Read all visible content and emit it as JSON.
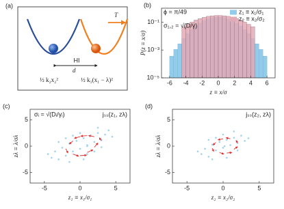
{
  "panel_a": {
    "panel_label": "(a)",
    "left_potential": "½ k₂x₂²",
    "right_potential": "½ k₁(x₁ − λ)²",
    "coupling": "HI",
    "distance": "d",
    "temperature": "T"
  },
  "chart_data": [
    {
      "type": "histogram",
      "panel_label": "(b)",
      "xlabel": "z ≡ x/σ",
      "ylabel": "P(z ≡ x/σ)",
      "annotations": [
        "ϕ = π/49",
        "σ₁,₂ = √(D/γ)"
      ],
      "xlim": [
        -7,
        7
      ],
      "xticks": [
        -6,
        -4,
        -2,
        0,
        2,
        4,
        6
      ],
      "ylim": [
        1e-05,
        1
      ],
      "log_y": true,
      "yticks": [
        {
          "value": 1e-05,
          "label": "10⁻⁵"
        },
        {
          "value": 0.001,
          "label": "10⁻³"
        },
        {
          "value": 0.1,
          "label": "10⁻¹"
        }
      ],
      "legend": "upper right",
      "series": [
        {
          "name": "z₁ ≡ x₁/σ₁",
          "color": "#93cbea",
          "bins": [
            -6,
            -5.5,
            -5,
            -4.5,
            -4,
            -3.5,
            -3,
            -2.5,
            -2,
            -1.5,
            -1,
            -0.5,
            0,
            0.5,
            1,
            1.5,
            2,
            2.5,
            3,
            3.5,
            4,
            4.5,
            5,
            5.5,
            6
          ],
          "values": [
            0.00036,
            0.0011,
            0.0028,
            0.0067,
            0.015,
            0.029,
            0.052,
            0.086,
            0.13,
            0.17,
            0.21,
            0.23,
            0.23,
            0.21,
            0.17,
            0.13,
            0.086,
            0.052,
            0.029,
            0.015,
            0.0067,
            0.0028,
            0.0011,
            0.00036
          ]
        },
        {
          "name": "z₂ ≡ x₂/σ₂",
          "color": "#e2a9b6",
          "bins": [
            -4.5,
            -4,
            -3.5,
            -3,
            -2.5,
            -2,
            -1.5,
            -1,
            -0.5,
            0,
            0.5,
            1,
            1.5,
            2,
            2.5,
            3,
            3.5,
            4,
            4.5
          ],
          "values": [
            0.047,
            0.07,
            0.1,
            0.14,
            0.18,
            0.22,
            0.26,
            0.28,
            0.3,
            0.3,
            0.28,
            0.26,
            0.22,
            0.18,
            0.14,
            0.1,
            0.07,
            0.047
          ]
        }
      ]
    },
    {
      "type": "scatter",
      "panel_label": "(c)",
      "xlabel": "z₁ ≡ x₁/σ₁",
      "ylabel": "zλ ≡ λ/σλ",
      "annotations": [
        "σᵢ = √(Dᵢ/γᵢ)",
        "jₛₛ(z₁, zλ)"
      ],
      "xlim": [
        -7,
        7
      ],
      "xticks": [
        -5,
        0,
        5
      ],
      "ylim": [
        -7,
        7
      ],
      "yticks": [
        -5,
        0,
        5
      ],
      "point_color": "#9fd3ee",
      "arrow_color": "#e03030",
      "x": [
        -4,
        -3.5,
        -3,
        -2.5,
        -2,
        -1.5,
        -1,
        -0.5,
        0,
        0.5,
        1,
        1.5,
        2,
        2.5,
        3,
        3.5,
        4,
        -3,
        -2,
        -1,
        0,
        1,
        2,
        3,
        -1.5,
        0.5,
        2.5,
        -4.5,
        4.5,
        1
      ],
      "y": [
        -2.2,
        -1,
        -2.5,
        -0.3,
        -1.8,
        0.5,
        -1,
        1,
        -0.5,
        1.5,
        0.2,
        2,
        0.8,
        2.5,
        1.2,
        2.2,
        3,
        0.8,
        1.5,
        2,
        2.5,
        -1.5,
        -1,
        -0.2,
        -3,
        -2.5,
        3.5,
        -1.5,
        1.8,
        0
      ],
      "quiver": {
        "x": [
          -2,
          -1,
          0,
          1,
          2,
          3,
          2,
          1,
          0,
          -1
        ],
        "y": [
          -0.5,
          -1.5,
          -1.8,
          -1.2,
          -0.2,
          1,
          1.8,
          2,
          1.8,
          1
        ],
        "u": [
          0.3,
          0.8,
          0.9,
          0.8,
          0.5,
          -0.3,
          -0.8,
          -0.9,
          -0.8,
          -0.5
        ],
        "v": [
          -0.8,
          -0.4,
          0.1,
          0.5,
          0.8,
          0.6,
          0.2,
          -0.1,
          -0.3,
          -0.6
        ]
      }
    },
    {
      "type": "scatter",
      "panel_label": "(d)",
      "xlabel": "z₂ ≡ x₂/σ₂",
      "ylabel": "zλ ≡ λ/σλ",
      "annotations": [
        "jₛₛ(z₂, zλ)"
      ],
      "xlim": [
        -7,
        7
      ],
      "xticks": [
        -5,
        0,
        5
      ],
      "ylim": [
        -7,
        7
      ],
      "yticks": [
        -5,
        0,
        5
      ],
      "point_color": "#9fd3ee",
      "arrow_color": "#e03030",
      "x": [
        -3,
        -2.5,
        -2,
        -1.5,
        -1,
        -0.5,
        0,
        0.5,
        1,
        1.5,
        2,
        2.5,
        3,
        -2,
        -1,
        0,
        1,
        2,
        -1.5,
        0.5,
        1.5,
        -3.5,
        3.5,
        0.2
      ],
      "y": [
        -1.5,
        -0.5,
        -2,
        0.3,
        -0.8,
        0.8,
        -0.3,
        1.2,
        0.2,
        1.6,
        0.6,
        2,
        1,
        1.2,
        1.6,
        2.2,
        -1.3,
        -0.8,
        -2.5,
        -2.2,
        2.8,
        -1,
        1.5,
        0
      ],
      "quiver": {
        "x": [
          -1.5,
          -0.5,
          0.5,
          1.5,
          2,
          1,
          0,
          -1
        ],
        "y": [
          -0.4,
          -1.2,
          -1.3,
          -0.6,
          0.6,
          1.4,
          1.4,
          0.7
        ],
        "u": [
          0.2,
          0.6,
          0.7,
          0.5,
          -0.2,
          -0.6,
          -0.7,
          -0.4
        ],
        "v": [
          -0.6,
          -0.3,
          0.1,
          0.5,
          0.5,
          0.2,
          -0.2,
          -0.5
        ]
      }
    }
  ]
}
